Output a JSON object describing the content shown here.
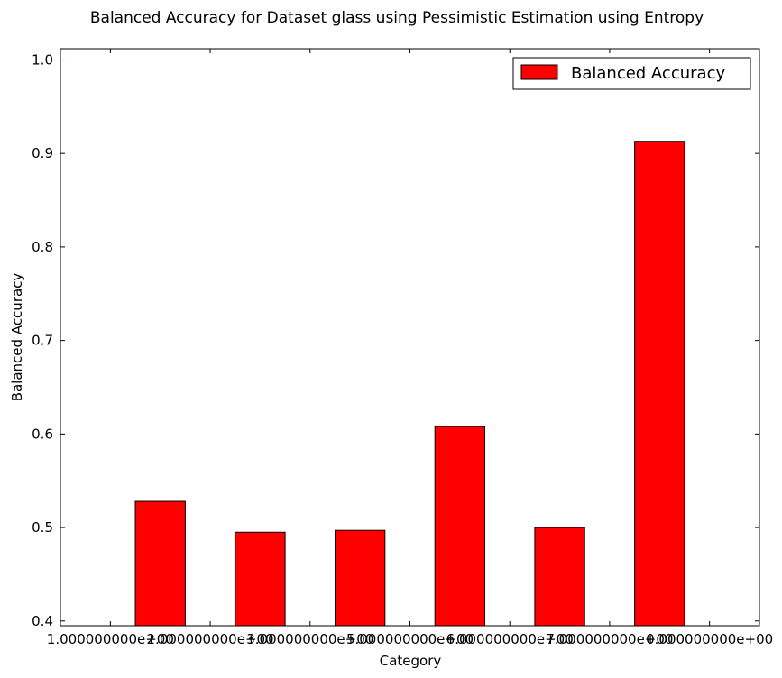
{
  "chart_data": {
    "type": "bar",
    "title": "Balanced Accuracy for Dataset glass using Pessimistic Estimation using Entropy",
    "xlabel": "Category",
    "ylabel": "Balanced Accuracy",
    "ylim": [
      0.395,
      1.012
    ],
    "yticks": [
      0.4,
      0.5,
      0.6,
      0.7,
      0.8,
      0.9,
      1.0
    ],
    "ytick_labels": [
      "0.4",
      "0.5",
      "0.6",
      "0.7",
      "0.8",
      "0.9",
      "1.0"
    ],
    "xtick_labels": [
      "1.000000000e+00",
      "2.000000000e+00",
      "3.000000000e+00",
      "5.000000000e+00",
      "6.000000000e+00",
      "7.000000000e+00",
      "0.000000000e+00"
    ],
    "categories": [
      1,
      2,
      3,
      5,
      6,
      7
    ],
    "values": [
      0.528,
      0.495,
      0.497,
      0.608,
      0.5,
      0.913
    ],
    "series": [
      {
        "name": "Balanced Accuracy",
        "color": "#ff0000"
      }
    ],
    "legend": {
      "placement": "top-right",
      "labels": [
        "Balanced Accuracy"
      ]
    },
    "grid": false
  }
}
